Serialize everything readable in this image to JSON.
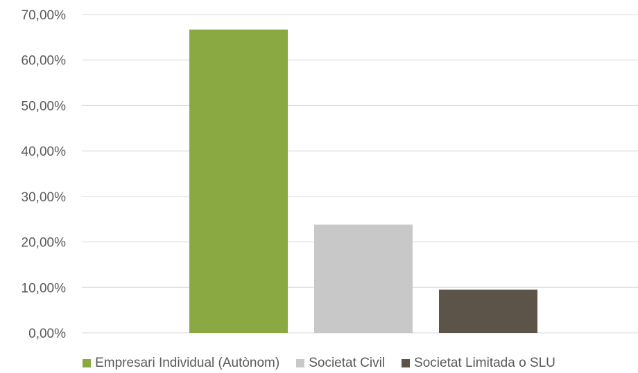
{
  "chart_data": {
    "type": "bar",
    "categories": [
      "Empresari Individual (Autònom)",
      "Societat Civil",
      "Societat Limitada o SLU"
    ],
    "values": [
      66.7,
      23.8,
      9.5
    ],
    "colors": [
      "#8aa943",
      "#c8c8c8",
      "#5c5449"
    ],
    "ylim": [
      0,
      70
    ],
    "yticks": [
      "0,00%",
      "10,00%",
      "20,00%",
      "30,00%",
      "40,00%",
      "50,00%",
      "60,00%",
      "70,00%"
    ],
    "ytick_values": [
      0,
      10,
      20,
      30,
      40,
      50,
      60,
      70
    ],
    "grid": true,
    "legend_position": "bottom",
    "title": "",
    "xlabel": "",
    "ylabel": ""
  }
}
